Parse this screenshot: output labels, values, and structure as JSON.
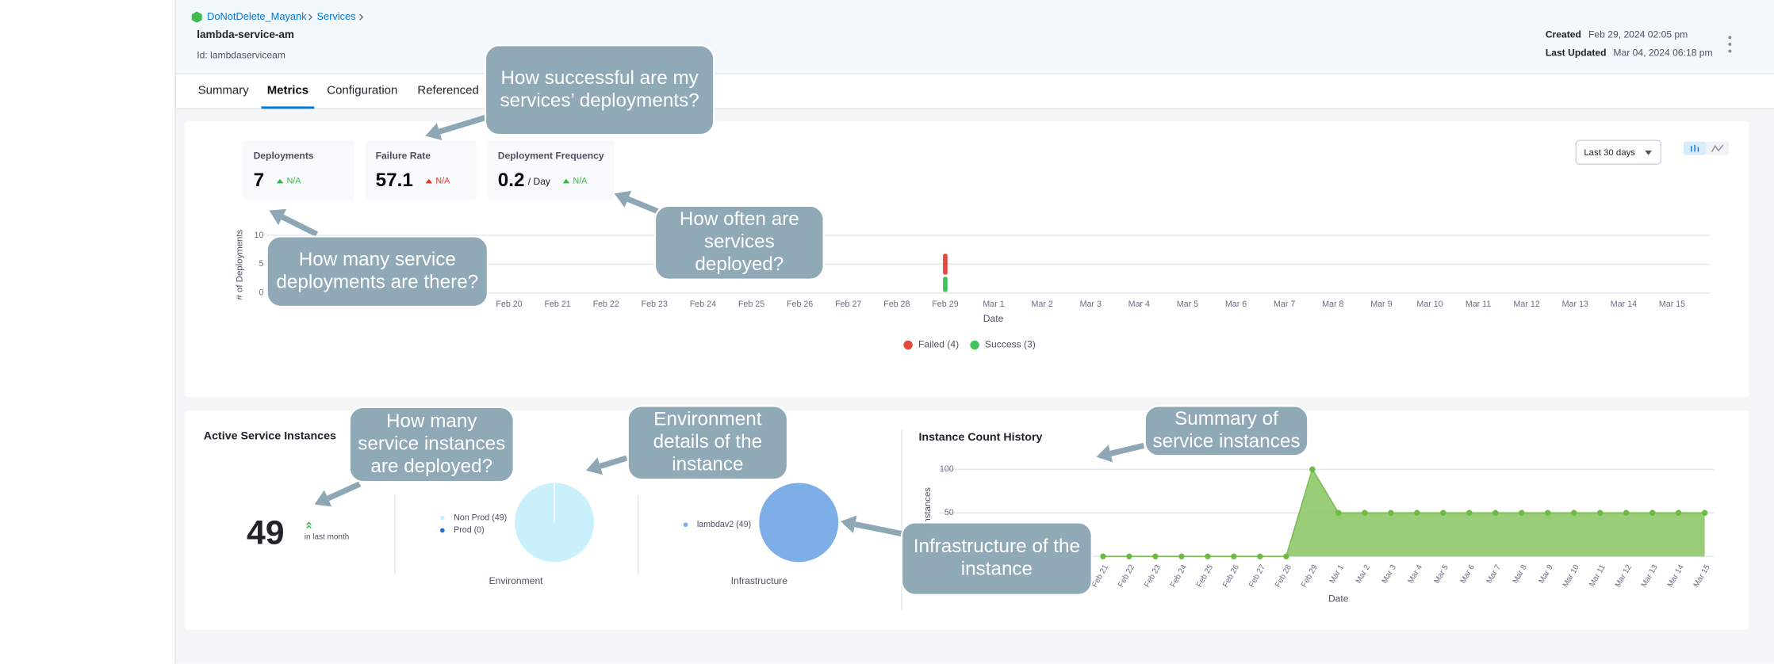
{
  "breadcrumb": [
    "DoNotDelete_Mayank",
    "Services"
  ],
  "header": {
    "title": "lambda-service-am",
    "id": "Id: lambdaserviceam",
    "created_label": "Created",
    "created": "Feb 29, 2024 02:05 pm",
    "updated_label": "Last Updated",
    "updated": "Mar 04, 2024 06:18 pm"
  },
  "tabs": [
    "Summary",
    "Metrics",
    "Configuration",
    "Referenced"
  ],
  "active_tab": 1,
  "metrics": [
    {
      "label": "Deployments",
      "value": 7,
      "change": "N/A",
      "trend_color": "#3cb34a"
    },
    {
      "label": "Failure Rate",
      "value": 57.1,
      "change": "N/A",
      "trend_color": "#e0332b"
    },
    {
      "label": "Deployment Frequency",
      "value": 0.2,
      "unit": "/ Day",
      "change": "N/A",
      "trend_color": "#3cb34a"
    }
  ],
  "time_range": "Last 30 days",
  "deployments_chart": {
    "type": "bar",
    "stacked": true,
    "y_label": "# of Deployments",
    "x_label": "Date",
    "categories": [
      "Feb 20",
      "Feb 21",
      "Feb 22",
      "Feb 23",
      "Feb 24",
      "Feb 25",
      "Feb 26",
      "Feb 27",
      "Feb 28",
      "Feb 29",
      "Mar 1",
      "Mar 2",
      "Mar 3",
      "Mar 4",
      "Mar 5",
      "Mar 6",
      "Mar 7",
      "Mar 8",
      "Mar 9",
      "Mar 10",
      "Mar 11",
      "Mar 12",
      "Mar 13",
      "Mar 14",
      "Mar 15"
    ],
    "series": [
      {
        "name": "Failed (4)",
        "color": "#e5483f",
        "values": [
          0,
          0,
          0,
          0,
          0,
          0,
          0,
          0,
          0,
          4,
          0,
          0,
          0,
          0,
          0,
          0,
          0,
          0,
          0,
          0,
          0,
          0,
          0,
          0,
          0
        ]
      },
      {
        "name": "Success (3)",
        "color": "#42c25a",
        "values": [
          0,
          0,
          0,
          0,
          0,
          0,
          0,
          0,
          0,
          3,
          0,
          0,
          0,
          0,
          0,
          0,
          0,
          0,
          0,
          0,
          0,
          0,
          0,
          0,
          0
        ]
      }
    ],
    "ylim": [
      0,
      10
    ],
    "yticks": [
      0,
      5,
      10
    ],
    "grid": true
  },
  "active_instances": {
    "title": "Active Service Instances",
    "count": 49,
    "note": "in last month"
  },
  "environment": {
    "type": "pie",
    "label": "Environment",
    "series": [
      {
        "name": "Non Prod (49)",
        "value": 49,
        "color": "#c9f0fb"
      },
      {
        "name": "Prod (0)",
        "value": 0,
        "color": "#1f6fd6"
      }
    ]
  },
  "infrastructure": {
    "type": "pie",
    "label": "Infrastructure",
    "series": [
      {
        "name": "lambdav2 (49)",
        "value": 49,
        "color": "#7daee8"
      }
    ]
  },
  "instance_chart": {
    "type": "area",
    "title": "Instance Count History",
    "y_label": "Instances",
    "x_label": "Date",
    "categories": [
      "Feb 21",
      "Feb 22",
      "Feb 23",
      "Feb 24",
      "Feb 25",
      "Feb 26",
      "Feb 27",
      "Feb 28",
      "Feb 29",
      "Mar 1",
      "Mar 2",
      "Mar 3",
      "Mar 4",
      "Mar 5",
      "Mar 6",
      "Mar 7",
      "Mar 8",
      "Mar 9",
      "Mar 10",
      "Mar 11",
      "Mar 12",
      "Mar 13",
      "Mar 14",
      "Mar 15"
    ],
    "values": [
      0,
      0,
      0,
      0,
      0,
      0,
      0,
      0,
      100,
      50,
      50,
      50,
      50,
      50,
      50,
      50,
      50,
      50,
      50,
      50,
      50,
      50,
      50,
      50
    ],
    "color": "#8fc868",
    "ylim": [
      0,
      100
    ],
    "yticks": [
      0,
      50,
      100
    ],
    "grid": true
  },
  "callouts": [
    {
      "lines": [
        "How successful are my",
        "services’ deployments?"
      ]
    },
    {
      "lines": [
        "How many service",
        "deployments are there?"
      ]
    },
    {
      "lines": [
        "How often are",
        "services",
        "deployed?"
      ]
    },
    {
      "lines": [
        "How many",
        "service instances",
        "are deployed?"
      ]
    },
    {
      "lines": [
        "Environment",
        "details of the",
        "instance"
      ]
    },
    {
      "lines": [
        "Summary of",
        "service instances"
      ]
    },
    {
      "lines": [
        "Infrastructure of the",
        "instance"
      ]
    }
  ]
}
